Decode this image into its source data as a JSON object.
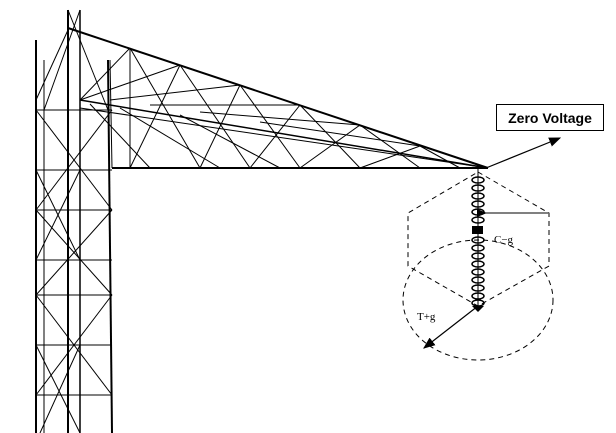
{
  "callout": {
    "label": "Zero Voltage"
  },
  "labels": {
    "c_minus_g": "C−g",
    "t_plus_g": "T+g"
  },
  "colors": {
    "ink": "#000000",
    "background": "#ffffff"
  }
}
